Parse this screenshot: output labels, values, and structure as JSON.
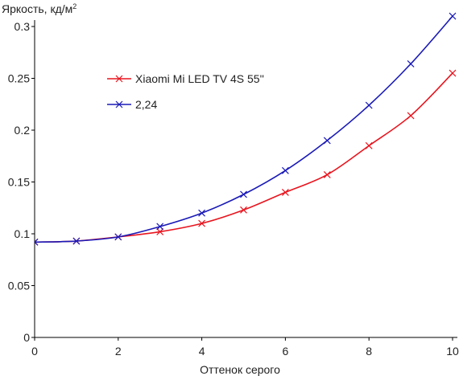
{
  "chart_data": {
    "type": "line",
    "title": "",
    "ylabel": "Яркость, кд/м",
    "ylabel_superscript": "2",
    "xlabel": "Оттенок серого",
    "xlim": [
      0,
      10
    ],
    "ylim": [
      0,
      0.3
    ],
    "x_ticks": [
      0,
      2,
      4,
      6,
      8,
      10
    ],
    "y_ticks": [
      0,
      0.05,
      0.1,
      0.15,
      0.2,
      0.25,
      0.3
    ],
    "y_tick_labels": [
      "0",
      "0.05",
      "0.1",
      "0.15",
      "0.2",
      "0.25",
      "0.3"
    ],
    "grid": false,
    "legend_position": "upper-left",
    "x": [
      0,
      1,
      2,
      3,
      4,
      5,
      6,
      7,
      8,
      9,
      10
    ],
    "series": [
      {
        "name": "Xiaomi Mi LED TV 4S 55''",
        "color": "#e8141e",
        "values": [
          0.092,
          0.093,
          0.097,
          0.102,
          0.11,
          0.123,
          0.14,
          0.157,
          0.185,
          0.214,
          0.255
        ]
      },
      {
        "name": "2,24",
        "color": "#1a1ab8",
        "values": [
          0.092,
          0.093,
          0.097,
          0.107,
          0.12,
          0.138,
          0.161,
          0.19,
          0.224,
          0.264,
          0.31
        ]
      }
    ]
  }
}
